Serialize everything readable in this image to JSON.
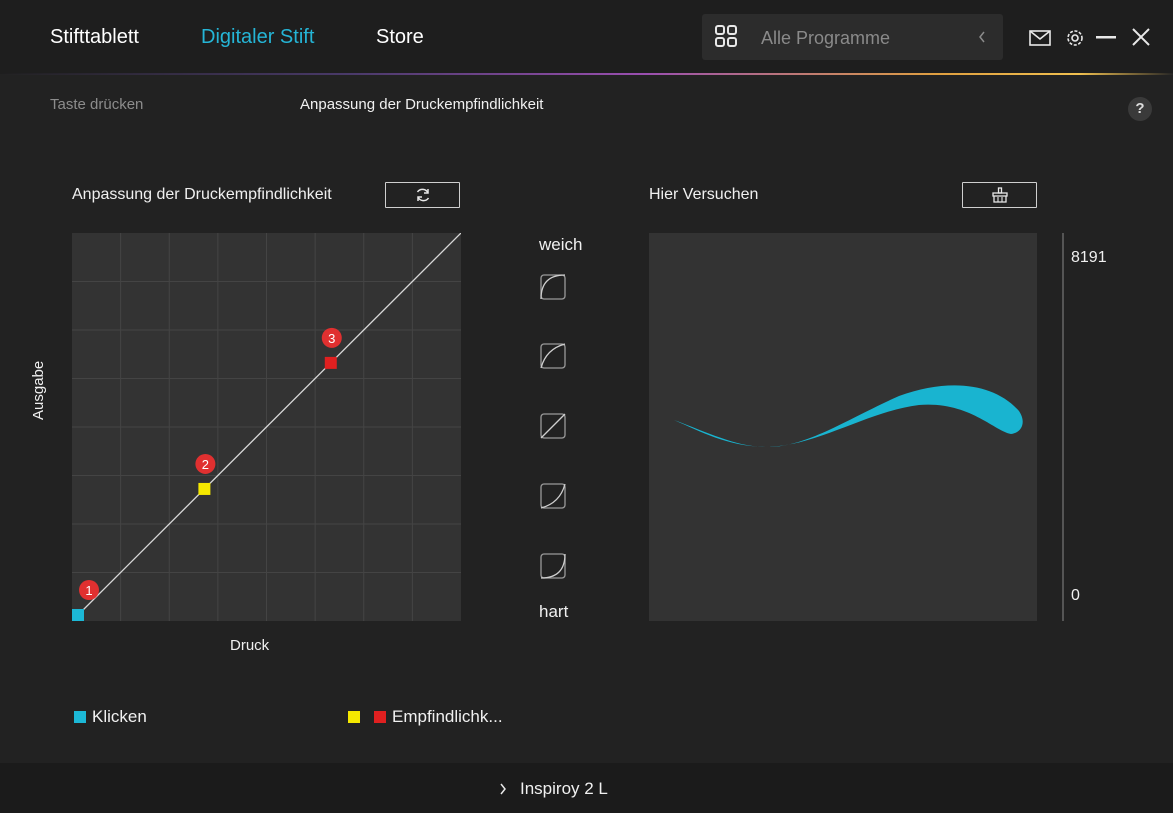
{
  "nav": {
    "tabs": [
      {
        "label": "Stifttablett"
      },
      {
        "label": "Digitaler Stift"
      },
      {
        "label": "Store"
      }
    ],
    "active_color": "#25b5d6"
  },
  "search": {
    "placeholder": "Alle Programme",
    "icon": "grid-icon"
  },
  "window_controls": [
    "mail-icon",
    "gear-icon",
    "minimize-icon",
    "close-icon"
  ],
  "subtabs": [
    {
      "label": "Taste drücken"
    },
    {
      "label": "Anpassung der Druckempfindlichkeit"
    }
  ],
  "help_label": "?",
  "pressure": {
    "title": "Anpassung der Druckempfindlichkeit",
    "reset_icon": "refresh-icon",
    "xlabel": "Druck",
    "ylabel": "Ausgabe",
    "points": [
      {
        "label": "1",
        "x": 0.0,
        "y": 0.0,
        "color": "#1cb8d6"
      },
      {
        "label": "2",
        "x": 0.33,
        "y": 0.33,
        "color": "#f5e800"
      },
      {
        "label": "3",
        "x": 0.66,
        "y": 0.66,
        "color": "#e02020"
      }
    ]
  },
  "curves": {
    "soft_label": "weich",
    "hard_label": "hart",
    "presets": [
      "curve-soft-icon",
      "curve-medium-soft-icon",
      "curve-linear-icon",
      "curve-medium-hard-icon",
      "curve-hard-icon"
    ]
  },
  "tryout": {
    "title": "Hier Versuchen",
    "clear_icon": "clear-icon",
    "stroke_color": "#19b4d0",
    "scale_max": "8191",
    "scale_min": "0"
  },
  "legend": {
    "click_label": "Klicken",
    "sensitivity_label": "Empfindlichk...",
    "colors": {
      "click": "#1cb8d6",
      "s1": "#f5e800",
      "s2": "#e02020"
    }
  },
  "device": {
    "name": "Inspiroy 2 L"
  }
}
